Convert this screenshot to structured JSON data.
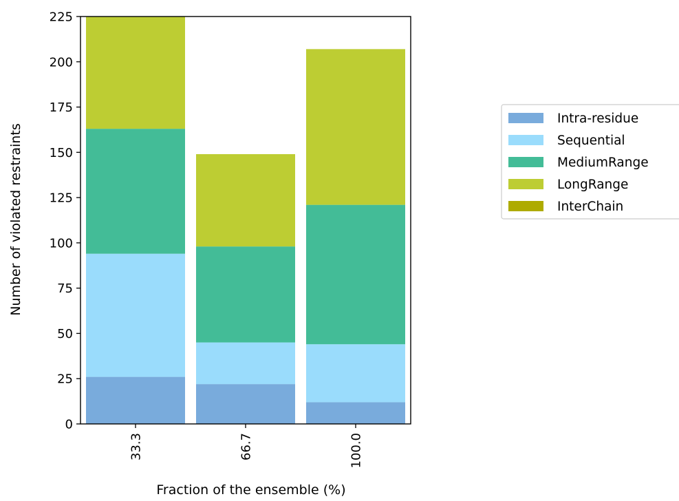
{
  "chart_data": {
    "type": "bar",
    "stacked": true,
    "title": "",
    "xlabel": "Fraction of the ensemble (%)",
    "ylabel": "Number of violated restraints",
    "categories": [
      "33.3",
      "66.7",
      "100.0"
    ],
    "ylim": [
      0,
      225
    ],
    "yticks": [
      0,
      25,
      50,
      75,
      100,
      125,
      150,
      175,
      200,
      225
    ],
    "grid": false,
    "legend_position": "right",
    "series": [
      {
        "name": "Intra-residue",
        "color": "#79abdc",
        "values": [
          26,
          22,
          12
        ]
      },
      {
        "name": "Sequential",
        "color": "#9adcfc",
        "values": [
          68,
          23,
          32
        ]
      },
      {
        "name": "MediumRange",
        "color": "#43bc97",
        "values": [
          69,
          53,
          77
        ]
      },
      {
        "name": "LongRange",
        "color": "#bdcd33",
        "values": [
          63,
          51,
          86
        ]
      },
      {
        "name": "InterChain",
        "color": "#aeab00",
        "values": [
          0,
          0,
          0
        ]
      }
    ]
  }
}
